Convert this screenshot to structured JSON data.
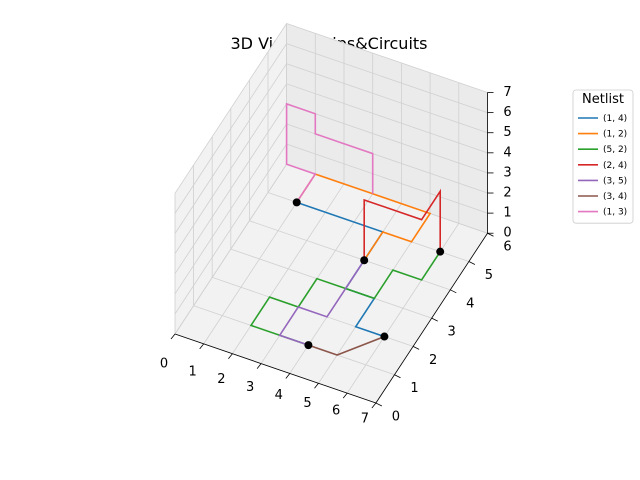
{
  "chart_data": {
    "type": "line",
    "projection": "3d",
    "title": "3D Visual Chips&Circuits",
    "xlabel": "",
    "ylabel": "",
    "zlabel": "",
    "xlim": [
      0,
      7
    ],
    "ylim": [
      0,
      6
    ],
    "zlim": [
      0,
      7
    ],
    "x_ticks": [
      "0",
      "1",
      "2",
      "3",
      "4",
      "5",
      "6",
      "7"
    ],
    "y_ticks": [
      "0",
      "1",
      "2",
      "3",
      "4",
      "5",
      "6"
    ],
    "z_ticks": [
      "0",
      "1",
      "2",
      "3",
      "4",
      "5",
      "6",
      "7"
    ],
    "grid": true,
    "legend": {
      "title": "Netlist",
      "placement": "outside-upper-right"
    },
    "gates": [
      {
        "x": 1,
        "y": 5,
        "z": 0
      },
      {
        "x": 4,
        "y": 4,
        "z": 0
      },
      {
        "x": 6,
        "y": 5,
        "z": 0
      },
      {
        "x": 4,
        "y": 1,
        "z": 0
      },
      {
        "x": 6,
        "y": 2,
        "z": 0
      }
    ],
    "series": [
      {
        "name": "(1, 4)",
        "color": "#1f77b4",
        "points": [
          [
            1,
            5,
            0
          ],
          [
            4,
            5,
            0
          ],
          [
            4,
            3,
            0
          ],
          [
            5,
            3,
            0
          ],
          [
            5,
            2,
            0
          ],
          [
            6,
            2,
            0
          ]
        ]
      },
      {
        "name": "(1, 2)",
        "color": "#ff7f0e",
        "points": [
          [
            1,
            5,
            0
          ],
          [
            1,
            6,
            0
          ],
          [
            3,
            6,
            0
          ],
          [
            5,
            6,
            0
          ],
          [
            5,
            5,
            0
          ],
          [
            4,
            5,
            0
          ],
          [
            4,
            4,
            0
          ]
        ]
      },
      {
        "name": "(5, 2)",
        "color": "#2ca02c",
        "points": [
          [
            6,
            5,
            0
          ],
          [
            6,
            4,
            0
          ],
          [
            5,
            4,
            0
          ],
          [
            5,
            3,
            0
          ],
          [
            4,
            3,
            0
          ],
          [
            3,
            3,
            0
          ],
          [
            3,
            2,
            0
          ],
          [
            2,
            2,
            0
          ],
          [
            2,
            1,
            0
          ],
          [
            4,
            1,
            0
          ]
        ]
      },
      {
        "name": "(2, 4)",
        "color": "#d62728",
        "points": [
          [
            4,
            4,
            0
          ],
          [
            4,
            4,
            3
          ],
          [
            6,
            4,
            3
          ],
          [
            6,
            5,
            3
          ],
          [
            6,
            5,
            0
          ]
        ]
      },
      {
        "name": "(3, 5)",
        "color": "#9467bd",
        "points": [
          [
            4,
            1,
            0
          ],
          [
            3,
            1,
            0
          ],
          [
            3,
            2,
            0
          ],
          [
            4,
            2,
            0
          ],
          [
            4,
            3,
            0
          ],
          [
            4,
            4,
            0
          ]
        ]
      },
      {
        "name": "(3, 4)",
        "color": "#8c564b",
        "points": [
          [
            4,
            1,
            0
          ],
          [
            5,
            1,
            0
          ],
          [
            6,
            2,
            0
          ]
        ]
      },
      {
        "name": "(1, 3)",
        "color": "#e377c2",
        "points": [
          [
            1,
            5,
            0
          ],
          [
            1,
            6,
            0
          ],
          [
            0,
            6,
            0
          ],
          [
            0,
            6,
            1
          ],
          [
            0,
            6,
            3
          ],
          [
            1,
            6,
            3
          ],
          [
            1,
            6,
            2
          ],
          [
            2,
            6,
            2
          ],
          [
            3,
            6,
            2
          ],
          [
            3,
            6,
            0
          ]
        ]
      }
    ]
  }
}
